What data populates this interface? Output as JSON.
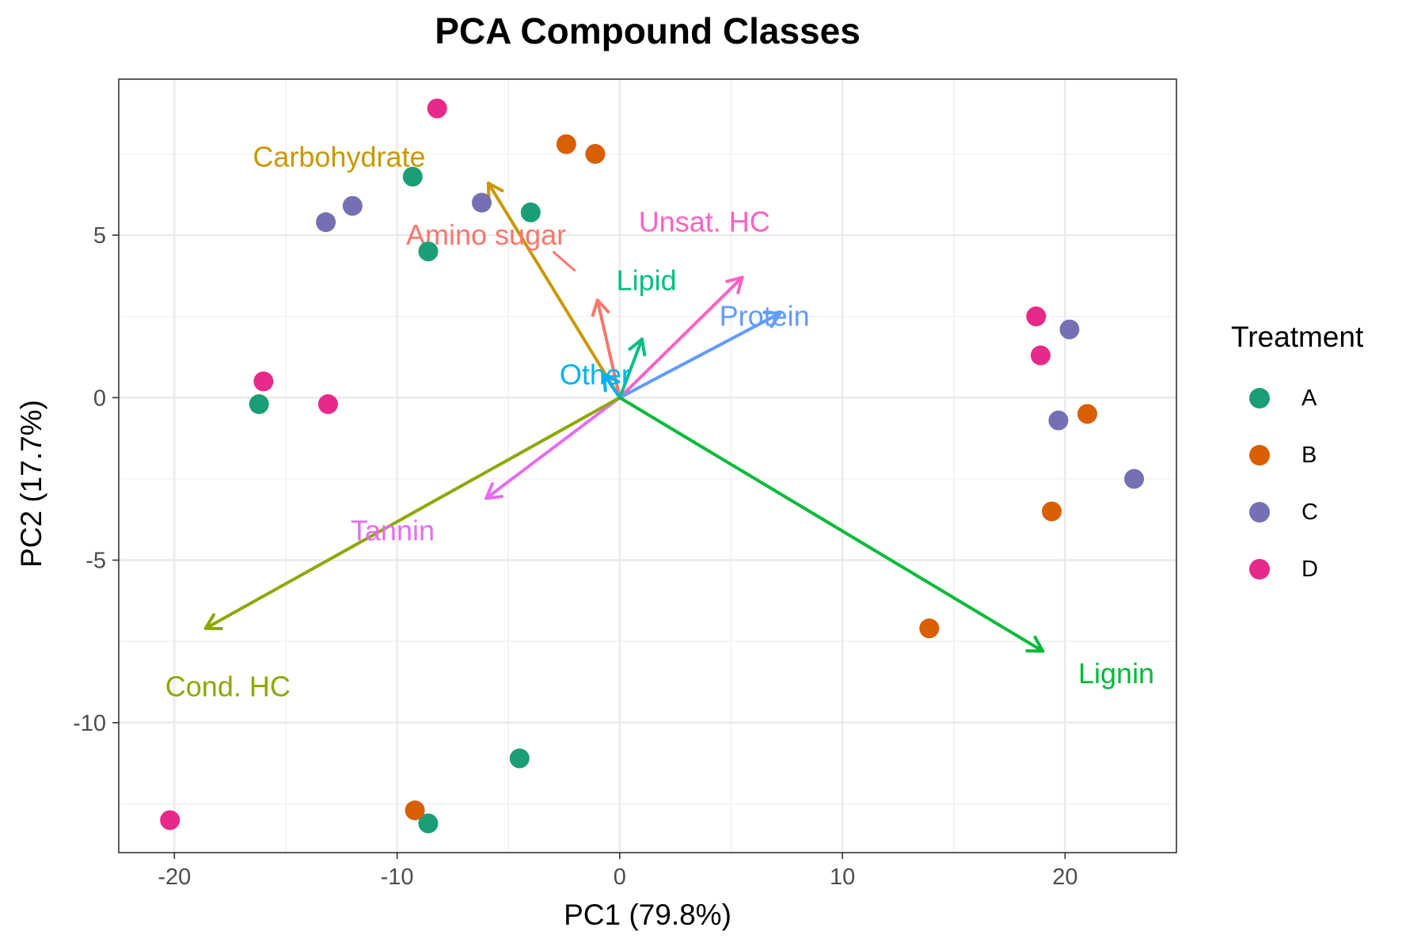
{
  "chart_data": {
    "type": "scatter",
    "title": "PCA Compound Classes",
    "xlabel": "PC1 (79.8%)",
    "ylabel": "PC2 (17.7%)",
    "xlim": [
      -22.5,
      25
    ],
    "ylim": [
      -14,
      9.8
    ],
    "x_ticks": [
      -20,
      -10,
      0,
      10,
      20
    ],
    "x_tick_labels": [
      "-20",
      "-10",
      "0",
      "10",
      "20"
    ],
    "y_ticks": [
      -10,
      -5,
      0,
      5
    ],
    "y_tick_labels": [
      "-10",
      "-5",
      "0",
      "5"
    ],
    "grid": true,
    "legend_title": "Treatment",
    "legend_position": "right",
    "series": [
      {
        "name": "A",
        "color": "#1b9e77",
        "points": [
          [
            -16.2,
            -0.2
          ],
          [
            -9.3,
            6.8
          ],
          [
            -8.6,
            4.5
          ],
          [
            -4.0,
            5.7
          ],
          [
            -4.5,
            -11.1
          ],
          [
            -8.6,
            -13.1
          ]
        ]
      },
      {
        "name": "B",
        "color": "#d95f02",
        "points": [
          [
            -2.4,
            7.8
          ],
          [
            -1.1,
            7.5
          ],
          [
            21.0,
            -0.5
          ],
          [
            19.4,
            -3.5
          ],
          [
            13.9,
            -7.1
          ],
          [
            -9.2,
            -12.7
          ]
        ]
      },
      {
        "name": "C",
        "color": "#7570b3",
        "points": [
          [
            -13.2,
            5.4
          ],
          [
            -12.0,
            5.9
          ],
          [
            -6.2,
            6.0
          ],
          [
            20.2,
            2.1
          ],
          [
            19.7,
            -0.7
          ],
          [
            23.1,
            -2.5
          ]
        ]
      },
      {
        "name": "D",
        "color": "#e7298a",
        "points": [
          [
            -8.2,
            8.9
          ],
          [
            -16.0,
            0.5
          ],
          [
            -13.1,
            -0.2
          ],
          [
            18.7,
            2.5
          ],
          [
            18.9,
            1.3
          ],
          [
            -20.2,
            -13.0
          ]
        ]
      }
    ],
    "loadings": [
      {
        "name": "Carbohydrate",
        "x": -5.9,
        "y": 6.6,
        "color": "#c99800",
        "label_x": -12.6,
        "label_y": 7.4
      },
      {
        "name": "Amino sugar",
        "x": -1.0,
        "y": 3.0,
        "color": "#f8766d",
        "label_x": -6.0,
        "label_y": 5.0
      },
      {
        "name": "Unsat. HC",
        "x": 5.5,
        "y": 3.7,
        "color": "#ff61c3",
        "label_x": 3.8,
        "label_y": 5.4
      },
      {
        "name": "Lipid",
        "x": 1.0,
        "y": 1.8,
        "color": "#00bf7d",
        "label_x": 1.2,
        "label_y": 3.6
      },
      {
        "name": "Protein",
        "x": 7.2,
        "y": 2.6,
        "color": "#619cff",
        "label_x": 6.5,
        "label_y": 2.5
      },
      {
        "name": "Other",
        "x": -0.7,
        "y": 0.7,
        "color": "#00b0f6",
        "label_x": -1.1,
        "label_y": 0.7
      },
      {
        "name": "Tannin",
        "x": -6.0,
        "y": -3.1,
        "color": "#e76bf3",
        "label_x": -10.2,
        "label_y": -4.1
      },
      {
        "name": "Cond. HC",
        "x": -18.6,
        "y": -7.1,
        "color": "#8ea700",
        "label_x": -17.6,
        "label_y": -8.9
      },
      {
        "name": "Lignin",
        "x": 19.0,
        "y": -7.8,
        "color": "#00ba38",
        "label_x": 22.3,
        "label_y": -8.5
      }
    ]
  }
}
